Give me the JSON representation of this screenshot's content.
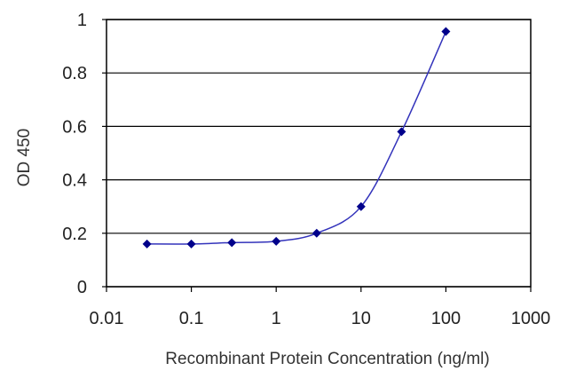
{
  "chart_data": {
    "type": "line",
    "xlabel": "Recombinant Protein Concentration (ng/ml)",
    "ylabel": "OD 450",
    "xscale": "log",
    "xlim": [
      0.01,
      1000
    ],
    "ylim": [
      0,
      1
    ],
    "x_ticks": [
      "0.01",
      "0.1",
      "1",
      "10",
      "100",
      "1000"
    ],
    "y_ticks": [
      "0",
      "0.2",
      "0.4",
      "0.6",
      "0.8",
      "1"
    ],
    "grid": "horizontal",
    "legend": "none",
    "series": [
      {
        "x": [
          0.03,
          0.1,
          0.3,
          1,
          3,
          10,
          30,
          100
        ],
        "y": [
          0.16,
          0.16,
          0.165,
          0.17,
          0.2,
          0.3,
          0.58,
          0.955
        ],
        "color": "#00008b",
        "line_color": "#3333bb"
      }
    ]
  }
}
